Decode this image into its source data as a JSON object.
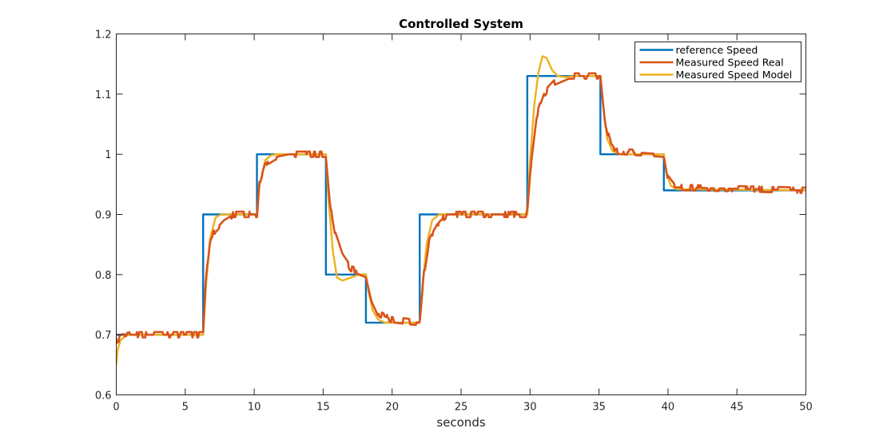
{
  "chart_data": {
    "type": "line",
    "title": "Controlled System",
    "xlabel": "seconds",
    "ylabel": "",
    "xlim": [
      0,
      50
    ],
    "ylim": [
      0.6,
      1.2
    ],
    "xticks": [
      0,
      5,
      10,
      15,
      20,
      25,
      30,
      35,
      40,
      45,
      50
    ],
    "yticks": [
      0.6,
      0.7,
      0.8,
      0.9,
      1.0,
      1.1,
      1.2
    ],
    "xtick_labels": [
      "0",
      "5",
      "10",
      "15",
      "20",
      "25",
      "30",
      "35",
      "40",
      "45",
      "50"
    ],
    "ytick_labels": [
      "0.6",
      "0.7",
      "0.8",
      "0.9",
      "1",
      "1.1",
      "1.2"
    ],
    "grid": false,
    "legend_position": "top-right",
    "series": [
      {
        "name": "reference Speed",
        "color": "#0072BD",
        "x": [
          0,
          6.3,
          6.3,
          10.2,
          10.2,
          15.2,
          15.2,
          18.1,
          18.1,
          22.0,
          22.0,
          29.8,
          29.8,
          35.1,
          35.1,
          39.7,
          39.7,
          50
        ],
        "y": [
          0.7,
          0.7,
          0.9,
          0.9,
          1.0,
          1.0,
          0.8,
          0.8,
          0.72,
          0.72,
          0.9,
          0.9,
          1.13,
          1.13,
          1.0,
          1.0,
          0.94,
          0.94
        ]
      },
      {
        "name": "Measured Speed Real",
        "color": "#D95319",
        "x": [
          0,
          0.3,
          1,
          3,
          6.3,
          6.5,
          6.8,
          7.2,
          7.8,
          8.5,
          10.2,
          10.4,
          10.8,
          11.5,
          12.5,
          15.2,
          15.5,
          15.9,
          16.4,
          17.0,
          18.1,
          18.5,
          19.0,
          20.0,
          22.0,
          22.3,
          22.7,
          23.3,
          24.0,
          29.8,
          30.1,
          30.5,
          31.0,
          31.8,
          32.8,
          35.1,
          35.4,
          35.8,
          36.3,
          39.7,
          40.0,
          40.5,
          50
        ],
        "y": [
          0.69,
          0.695,
          0.7,
          0.7,
          0.7,
          0.79,
          0.855,
          0.875,
          0.89,
          0.9,
          0.9,
          0.955,
          0.985,
          0.995,
          1.0,
          1.0,
          0.92,
          0.865,
          0.83,
          0.81,
          0.8,
          0.76,
          0.735,
          0.725,
          0.72,
          0.8,
          0.86,
          0.885,
          0.9,
          0.9,
          0.99,
          1.065,
          1.1,
          1.12,
          1.13,
          1.13,
          1.06,
          1.02,
          1.005,
          1.0,
          0.96,
          0.945,
          0.94
        ]
      },
      {
        "name": "Measured Speed Model",
        "color": "#EDB120",
        "x": [
          0,
          0.1,
          0.3,
          0.6,
          1.0,
          6.3,
          6.5,
          6.8,
          7.2,
          7.6,
          8.0,
          10.2,
          10.4,
          10.8,
          11.2,
          11.6,
          15.2,
          15.4,
          15.7,
          16.0,
          16.4,
          17.0,
          17.6,
          18.1,
          18.3,
          18.6,
          19.0,
          19.5,
          20.0,
          22.0,
          22.2,
          22.5,
          22.9,
          23.4,
          29.8,
          30.0,
          30.3,
          30.6,
          30.9,
          31.2,
          31.6,
          32.0,
          32.6,
          33.2,
          35.1,
          35.3,
          35.6,
          36.0,
          36.5,
          39.7,
          39.9,
          40.2,
          40.6,
          50
        ],
        "y": [
          0.65,
          0.675,
          0.69,
          0.697,
          0.7,
          0.7,
          0.78,
          0.86,
          0.895,
          0.9,
          0.9,
          0.9,
          0.95,
          0.99,
          0.998,
          1.0,
          1.0,
          0.92,
          0.84,
          0.795,
          0.79,
          0.795,
          0.8,
          0.8,
          0.77,
          0.74,
          0.725,
          0.72,
          0.72,
          0.72,
          0.78,
          0.85,
          0.89,
          0.9,
          0.9,
          0.99,
          1.08,
          1.135,
          1.163,
          1.16,
          1.14,
          1.13,
          1.128,
          1.13,
          1.13,
          1.08,
          1.025,
          1.005,
          1.0,
          1.0,
          0.97,
          0.948,
          0.942,
          0.94
        ]
      }
    ]
  }
}
